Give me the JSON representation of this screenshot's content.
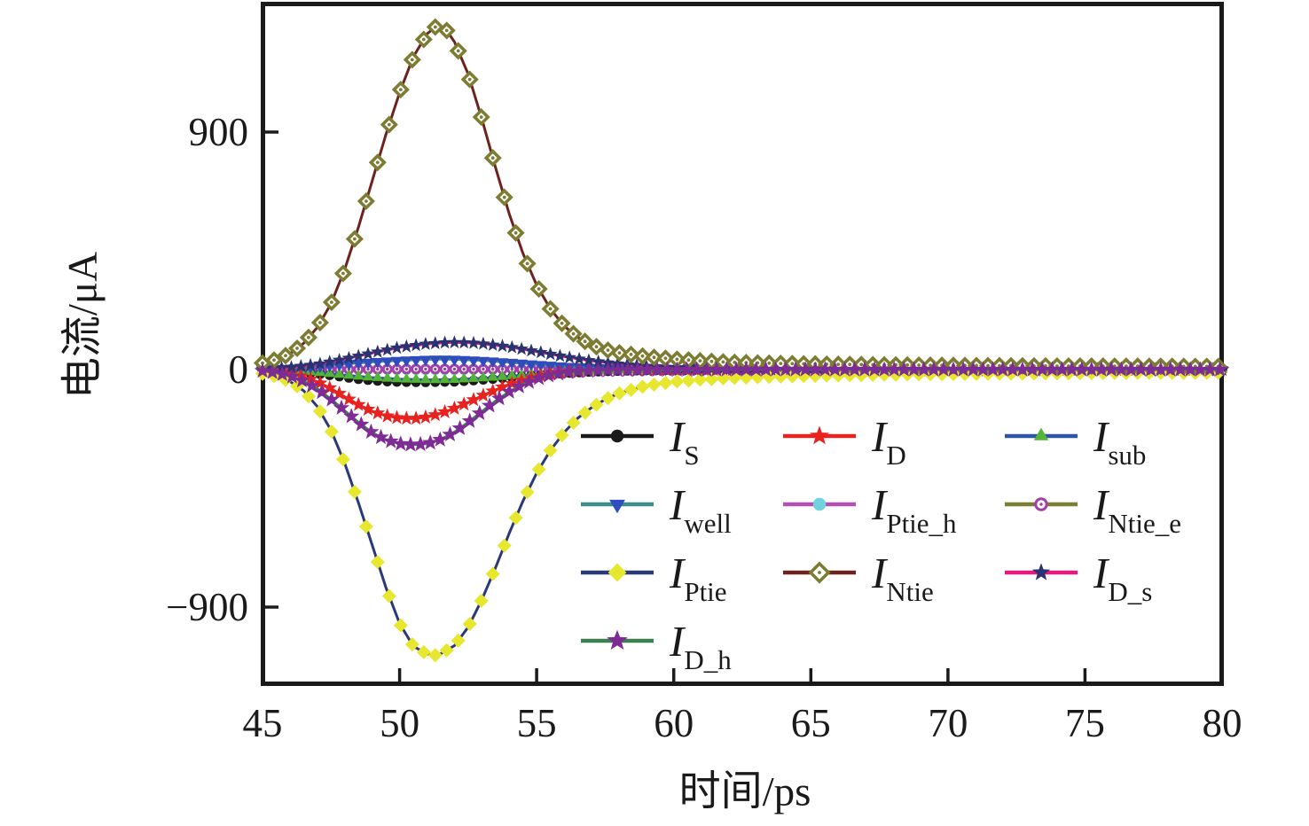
{
  "figure": {
    "background": "#ffffff",
    "frame_color": "#1a1a1a"
  },
  "axes": {
    "x": {
      "title": "时间/ps",
      "tick_values": [
        45,
        50,
        55,
        60,
        65,
        70,
        75,
        80
      ]
    },
    "y": {
      "title": "电流/μA",
      "ticks": [
        {
          "value": 900,
          "label": "900"
        },
        {
          "value": 0,
          "label": "0"
        },
        {
          "value": -900,
          "label": "−900"
        }
      ]
    }
  },
  "chart_data": {
    "type": "line",
    "title": "",
    "xlabel": "时间/ps",
    "ylabel": "电流/μA",
    "xlim": [
      45,
      80
    ],
    "ylim": [
      -1192,
      1387
    ],
    "grid": false,
    "legend_position": "inside lower-right, 3 columns",
    "draw_order": [
      "IPtie_h",
      "INtie_e",
      "IS",
      "Isub",
      "Iwell",
      "ID",
      "ID_s",
      "IPtie",
      "INtie",
      "ID_h"
    ],
    "series": [
      {
        "id": "IS",
        "label_main": "I",
        "label_sub": "S",
        "line_color": "#1a1a1a",
        "marker": {
          "shape": "circle",
          "color": "#1a1a1a",
          "size": 11
        },
        "marker_step": 0.35,
        "points": [
          [
            45,
            -1
          ],
          [
            46,
            -6
          ],
          [
            47,
            -16
          ],
          [
            47.5,
            -22
          ],
          [
            48,
            -29
          ],
          [
            48.5,
            -36
          ],
          [
            49,
            -41
          ],
          [
            49.5,
            -45
          ],
          [
            50,
            -47
          ],
          [
            51,
            -48
          ],
          [
            52,
            -46
          ],
          [
            53,
            -39
          ],
          [
            54,
            -30
          ],
          [
            55,
            -21
          ],
          [
            56,
            -14
          ],
          [
            57,
            -8
          ],
          [
            58,
            -5
          ],
          [
            59,
            -3
          ],
          [
            60,
            -2
          ],
          [
            62,
            -1
          ],
          [
            65,
            0
          ],
          [
            70,
            0
          ],
          [
            80,
            0
          ]
        ]
      },
      {
        "id": "ID",
        "label_main": "I",
        "label_sub": "D",
        "line_color": "#e8231f",
        "marker": {
          "shape": "star",
          "color": "#e8231f",
          "size": 13
        },
        "marker_step": 0.35,
        "points": [
          [
            45,
            -3
          ],
          [
            45.5,
            -7
          ],
          [
            46,
            -14
          ],
          [
            46.5,
            -27
          ],
          [
            47,
            -46
          ],
          [
            47.5,
            -72
          ],
          [
            48,
            -103
          ],
          [
            48.5,
            -133
          ],
          [
            49,
            -158
          ],
          [
            49.5,
            -175
          ],
          [
            50,
            -184
          ],
          [
            50.5,
            -186
          ],
          [
            51,
            -180
          ],
          [
            51.5,
            -166
          ],
          [
            52,
            -147
          ],
          [
            52.5,
            -124
          ],
          [
            53,
            -100
          ],
          [
            53.5,
            -77
          ],
          [
            54,
            -56
          ],
          [
            54.5,
            -39
          ],
          [
            55,
            -26
          ],
          [
            55.5,
            -17
          ],
          [
            56,
            -10
          ],
          [
            56.5,
            -6
          ],
          [
            57,
            -4
          ],
          [
            58,
            -2
          ],
          [
            59,
            -1
          ],
          [
            60,
            0
          ],
          [
            65,
            0
          ],
          [
            70,
            0
          ],
          [
            80,
            0
          ]
        ]
      },
      {
        "id": "Isub",
        "label_main": "I",
        "label_sub": "sub",
        "line_color": "#2c55a5",
        "marker": {
          "shape": "triangle-up",
          "color": "#53b438",
          "size": 11
        },
        "marker_step": 0.35,
        "points": [
          [
            45,
            -1
          ],
          [
            46,
            -4
          ],
          [
            47,
            -11
          ],
          [
            48,
            -21
          ],
          [
            49,
            -30
          ],
          [
            50,
            -36
          ],
          [
            51,
            -39
          ],
          [
            52,
            -38
          ],
          [
            53,
            -33
          ],
          [
            54,
            -25
          ],
          [
            55,
            -17
          ],
          [
            56,
            -11
          ],
          [
            57,
            -6
          ],
          [
            58,
            -3
          ],
          [
            59,
            -2
          ],
          [
            60,
            -1
          ],
          [
            62,
            0
          ],
          [
            65,
            0
          ],
          [
            70,
            0
          ],
          [
            80,
            0
          ]
        ]
      },
      {
        "id": "Iwell",
        "label_main": "I",
        "label_sub": "well",
        "line_color": "#3d8b8b",
        "marker": {
          "shape": "triangle-down",
          "color": "#2f4cbe",
          "size": 12
        },
        "marker_step": 0.35,
        "points": [
          [
            45,
            1
          ],
          [
            46,
            5
          ],
          [
            47,
            12
          ],
          [
            48,
            21
          ],
          [
            49,
            29
          ],
          [
            50,
            35
          ],
          [
            51,
            39
          ],
          [
            51.5,
            40
          ],
          [
            52,
            39
          ],
          [
            53,
            35
          ],
          [
            54,
            28
          ],
          [
            55,
            20
          ],
          [
            56,
            13
          ],
          [
            57,
            8
          ],
          [
            58,
            5
          ],
          [
            59,
            3
          ],
          [
            60,
            2
          ],
          [
            62,
            1
          ],
          [
            65,
            0
          ],
          [
            70,
            0
          ],
          [
            80,
            0
          ]
        ]
      },
      {
        "id": "IPtie_h",
        "label_main": "I",
        "label_sub": "Ptie_h",
        "line_color": "#b44fb4",
        "marker": {
          "shape": "circle",
          "color": "#6fd2dc",
          "size": 11
        },
        "marker_step": 0.35,
        "points": [
          [
            45,
            0
          ],
          [
            48,
            -1
          ],
          [
            50,
            -2
          ],
          [
            52,
            -2
          ],
          [
            55,
            -1
          ],
          [
            58,
            0
          ],
          [
            65,
            0
          ],
          [
            80,
            0
          ]
        ]
      },
      {
        "id": "INtie_e",
        "label_main": "I",
        "label_sub": "Ntie_e",
        "line_color": "#7c7c33",
        "marker": {
          "shape": "circle-open",
          "color": "#a040a8",
          "size": 11
        },
        "marker_step": 0.35,
        "points": [
          [
            45,
            0
          ],
          [
            48,
            1
          ],
          [
            50,
            2
          ],
          [
            52,
            2
          ],
          [
            55,
            1
          ],
          [
            58,
            0
          ],
          [
            65,
            0
          ],
          [
            80,
            0
          ]
        ]
      },
      {
        "id": "IPtie",
        "label_main": "I",
        "label_sub": "Ptie",
        "line_color": "#2a3a77",
        "marker": {
          "shape": "diamond",
          "color": "#e7e72f",
          "size": 16
        },
        "marker_step": 0.42,
        "points": [
          [
            45,
            -16
          ],
          [
            45.5,
            -26
          ],
          [
            46,
            -45
          ],
          [
            46.5,
            -80
          ],
          [
            47,
            -140
          ],
          [
            47.5,
            -230
          ],
          [
            48,
            -355
          ],
          [
            48.5,
            -505
          ],
          [
            49,
            -665
          ],
          [
            49.5,
            -825
          ],
          [
            50,
            -962
          ],
          [
            50.5,
            -1048
          ],
          [
            51,
            -1078
          ],
          [
            51.4,
            -1083
          ],
          [
            52,
            -1046
          ],
          [
            52.5,
            -976
          ],
          [
            53,
            -872
          ],
          [
            53.5,
            -750
          ],
          [
            54,
            -620
          ],
          [
            54.5,
            -498
          ],
          [
            55,
            -392
          ],
          [
            55.5,
            -306
          ],
          [
            56,
            -238
          ],
          [
            56.5,
            -184
          ],
          [
            57,
            -144
          ],
          [
            57.5,
            -113
          ],
          [
            58,
            -90
          ],
          [
            59,
            -61
          ],
          [
            60,
            -46
          ],
          [
            61,
            -38
          ],
          [
            62,
            -32
          ],
          [
            64,
            -26
          ],
          [
            66,
            -22
          ],
          [
            68,
            -19
          ],
          [
            70,
            -17
          ],
          [
            73,
            -15
          ],
          [
            76,
            -13
          ],
          [
            80,
            -12
          ]
        ]
      },
      {
        "id": "INtie",
        "label_main": "I",
        "label_sub": "Ntie",
        "line_color": "#6e2220",
        "marker": {
          "shape": "diamond-open",
          "color": "#7c7c33",
          "size": 17
        },
        "marker_step": 0.42,
        "points": [
          [
            45,
            25
          ],
          [
            45.5,
            38
          ],
          [
            46,
            60
          ],
          [
            46.5,
            100
          ],
          [
            47,
            160
          ],
          [
            47.5,
            250
          ],
          [
            48,
            380
          ],
          [
            48.5,
            540
          ],
          [
            49,
            715
          ],
          [
            49.5,
            890
          ],
          [
            50,
            1050
          ],
          [
            50.5,
            1185
          ],
          [
            51,
            1272
          ],
          [
            51.3,
            1298
          ],
          [
            51.7,
            1288
          ],
          [
            52,
            1242
          ],
          [
            52.5,
            1120
          ],
          [
            53,
            950
          ],
          [
            53.5,
            765
          ],
          [
            54,
            590
          ],
          [
            54.5,
            440
          ],
          [
            55,
            320
          ],
          [
            55.5,
            230
          ],
          [
            56,
            165
          ],
          [
            56.5,
            122
          ],
          [
            57,
            93
          ],
          [
            57.5,
            76
          ],
          [
            58,
            64
          ],
          [
            59,
            49
          ],
          [
            60,
            40
          ],
          [
            61,
            33
          ],
          [
            62,
            28
          ],
          [
            64,
            23
          ],
          [
            66,
            20
          ],
          [
            68,
            18
          ],
          [
            70,
            16
          ],
          [
            73,
            14
          ],
          [
            76,
            13
          ],
          [
            80,
            12
          ]
        ]
      },
      {
        "id": "ID_s",
        "label_main": "I",
        "label_sub": "D_s",
        "line_color": "#e6197e",
        "marker": {
          "shape": "star",
          "color": "#2b3272",
          "size": 12
        },
        "marker_step": 0.35,
        "points": [
          [
            45,
            2
          ],
          [
            46,
            8
          ],
          [
            47,
            20
          ],
          [
            48,
            40
          ],
          [
            49,
            63
          ],
          [
            50,
            84
          ],
          [
            51,
            97
          ],
          [
            51.8,
            103
          ],
          [
            52.5,
            102
          ],
          [
            53,
            98
          ],
          [
            54,
            86
          ],
          [
            55,
            68
          ],
          [
            56,
            49
          ],
          [
            57,
            33
          ],
          [
            58,
            21
          ],
          [
            59,
            13
          ],
          [
            60,
            8
          ],
          [
            61,
            5
          ],
          [
            62,
            3
          ],
          [
            64,
            2
          ],
          [
            66,
            1
          ],
          [
            68,
            1
          ],
          [
            70,
            0
          ],
          [
            75,
            0
          ],
          [
            80,
            0
          ]
        ]
      },
      {
        "id": "ID_h",
        "label_main": "I",
        "label_sub": "D_h",
        "line_color": "#3c8050",
        "marker": {
          "shape": "star",
          "color": "#7e2b96",
          "size": 14
        },
        "marker_step": 0.36,
        "points": [
          [
            45,
            -5
          ],
          [
            45.5,
            -12
          ],
          [
            46,
            -24
          ],
          [
            46.5,
            -44
          ],
          [
            47,
            -73
          ],
          [
            47.5,
            -112
          ],
          [
            48,
            -156
          ],
          [
            48.5,
            -200
          ],
          [
            49,
            -239
          ],
          [
            49.5,
            -266
          ],
          [
            50,
            -281
          ],
          [
            50.5,
            -285
          ],
          [
            51,
            -281
          ],
          [
            51.5,
            -265
          ],
          [
            52,
            -237
          ],
          [
            52.5,
            -200
          ],
          [
            53,
            -159
          ],
          [
            53.5,
            -119
          ],
          [
            54,
            -84
          ],
          [
            54.5,
            -56
          ],
          [
            55,
            -35
          ],
          [
            55.5,
            -21
          ],
          [
            56,
            -12
          ],
          [
            56.5,
            -7
          ],
          [
            57,
            -4
          ],
          [
            58,
            -2
          ],
          [
            59,
            -1
          ],
          [
            60,
            -1
          ],
          [
            62,
            0
          ],
          [
            65,
            0
          ],
          [
            70,
            0
          ],
          [
            75,
            0
          ],
          [
            80,
            0
          ]
        ]
      }
    ]
  }
}
